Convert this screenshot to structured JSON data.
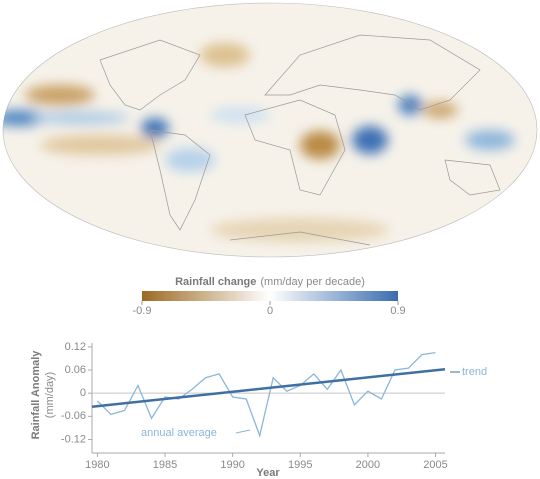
{
  "chart_data": [
    {
      "type": "colorbar",
      "title": "Rainfall change",
      "subtitle": "(mm/day per decade)",
      "lim": [
        -0.9,
        0.9
      ],
      "ticks": [
        -0.9,
        0,
        0.9
      ],
      "colors": [
        "#9c6a22",
        "#ffffff",
        "#3a6cb0"
      ]
    },
    {
      "type": "line",
      "ylabel": "Rainfall Anomaly",
      "ylabel_units": "(mm/day)",
      "xlabel": "Year",
      "xlim": [
        1979.6,
        2005.7
      ],
      "xticks": [
        1980,
        1985,
        1990,
        1995,
        2000,
        2005
      ],
      "ylim": [
        -0.155,
        0.13
      ],
      "yticks": [
        0.12,
        0.06,
        0,
        -0.06,
        -0.12
      ],
      "series": [
        {
          "name": "annual average",
          "color": "#8ab6da",
          "x": [
            1980,
            1981,
            1982,
            1983,
            1984,
            1985,
            1986,
            1987,
            1988,
            1989,
            1990,
            1991,
            1992,
            1993,
            1994,
            1995,
            1996,
            1997,
            1998,
            1999,
            2000,
            2001,
            2002,
            2003,
            2004,
            2005
          ],
          "values": [
            -0.02,
            -0.055,
            -0.045,
            0.02,
            -0.065,
            -0.01,
            -0.015,
            0.01,
            0.04,
            0.05,
            -0.01,
            -0.015,
            -0.11,
            0.04,
            0.005,
            0.02,
            0.05,
            0.01,
            0.06,
            -0.03,
            0.005,
            -0.015,
            0.06,
            0.065,
            0.1,
            0.105
          ]
        },
        {
          "name": "trend",
          "color": "#3f6fa3",
          "x": [
            1979.6,
            2005.7
          ],
          "values": [
            -0.035,
            0.062
          ]
        }
      ]
    }
  ]
}
